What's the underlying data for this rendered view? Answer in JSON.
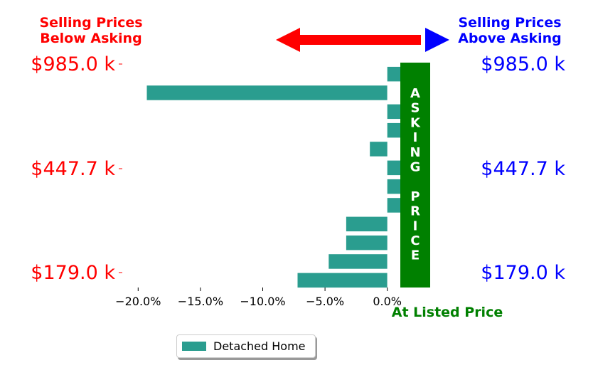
{
  "chart_data": {
    "type": "bar",
    "orientation": "horizontal",
    "series": [
      {
        "name": "Detached Home",
        "values": [
          1.2,
          -19.3,
          1.1,
          2.0,
          -1.4,
          1.1,
          3.1,
          1.2,
          -3.3,
          -3.3,
          -4.7,
          -7.2
        ]
      }
    ],
    "xlim": [
      -21.5,
      3.5
    ],
    "xticks": [
      -20,
      -15,
      -10,
      -5,
      0
    ],
    "xtick_labels": [
      "−20.0%",
      "−15.0%",
      "−10.0%",
      "−5.0%",
      "0.0%"
    ],
    "ylim": [
      179.0,
      985.0
    ],
    "y_tick_labels": [
      "$985.0 k",
      "$447.7 k",
      "$179.0 k"
    ],
    "colors": {
      "bar": "#2a9d8f",
      "below": "#ff0000",
      "above": "#0000ff",
      "at_price": "#008000"
    }
  },
  "labels": {
    "below_line1": "Selling Prices",
    "below_line2": "Below Asking",
    "above_line1": "Selling Prices",
    "above_line2": "Above Asking",
    "center_letters": [
      "A",
      "S",
      "K",
      "I",
      "N",
      "G",
      "",
      "P",
      "R",
      "I",
      "C",
      "E"
    ],
    "at_listed": "At Listed Price"
  },
  "legend": {
    "label": "Detached Home"
  }
}
